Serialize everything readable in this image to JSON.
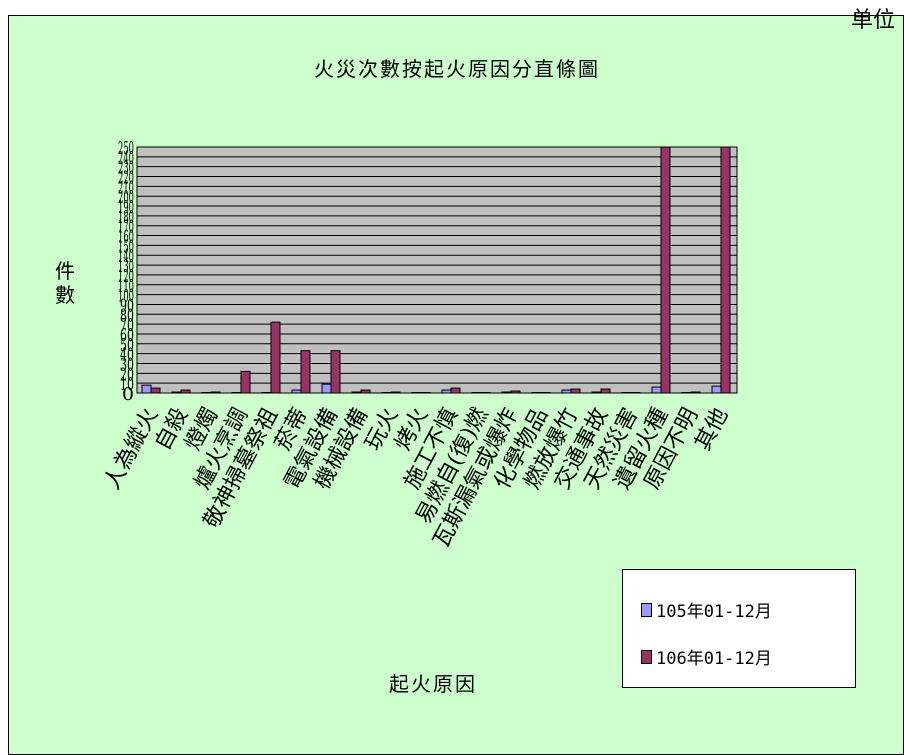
{
  "corner_text": "单位",
  "title": "火災次數按起火原因分直條圖",
  "chart_data": {
    "type": "bar",
    "title": "火災次數按起火原因分直條圖",
    "ylabel": "件數",
    "xlabel": "起火原因",
    "ylim": [
      0,
      250
    ],
    "y_ticks": [
      0,
      10,
      20,
      30,
      40,
      50,
      60,
      70,
      80,
      90,
      100,
      110,
      120,
      130,
      140,
      150,
      160,
      170,
      180,
      190,
      200,
      210,
      220,
      230,
      240,
      250
    ],
    "grid": true,
    "legend_position": "bottom-right",
    "categories": [
      "人為縱火",
      "自殺",
      "燈燭",
      "爐火烹調",
      "敬神掃墓祭祖",
      "菸蒂",
      "電氣設備",
      "機械設備",
      "玩火",
      "烤火",
      "施工不慎",
      "易燃自(復)燃",
      "瓦斯漏氣或爆炸",
      "化學物品",
      "燃放爆竹",
      "交通事故",
      "天然災害",
      "遺留火種",
      "原因不明",
      "其他"
    ],
    "series": [
      {
        "name": "105年01-12月",
        "color": "#9999ff",
        "values": [
          8,
          1,
          0,
          0,
          0,
          3,
          9,
          1,
          0,
          0,
          3,
          0,
          1,
          0,
          3,
          1,
          0,
          6,
          0,
          7
        ]
      },
      {
        "name": "106年01-12月",
        "color": "#993366",
        "values": [
          5,
          3,
          1,
          22,
          72,
          43,
          43,
          3,
          1,
          0,
          5,
          0,
          2,
          0,
          4,
          4,
          0,
          250,
          1,
          250
        ]
      }
    ]
  },
  "colors": {
    "background": "#ccffcc",
    "plot_bg": "#c0c0c0",
    "grid": "#000000"
  }
}
